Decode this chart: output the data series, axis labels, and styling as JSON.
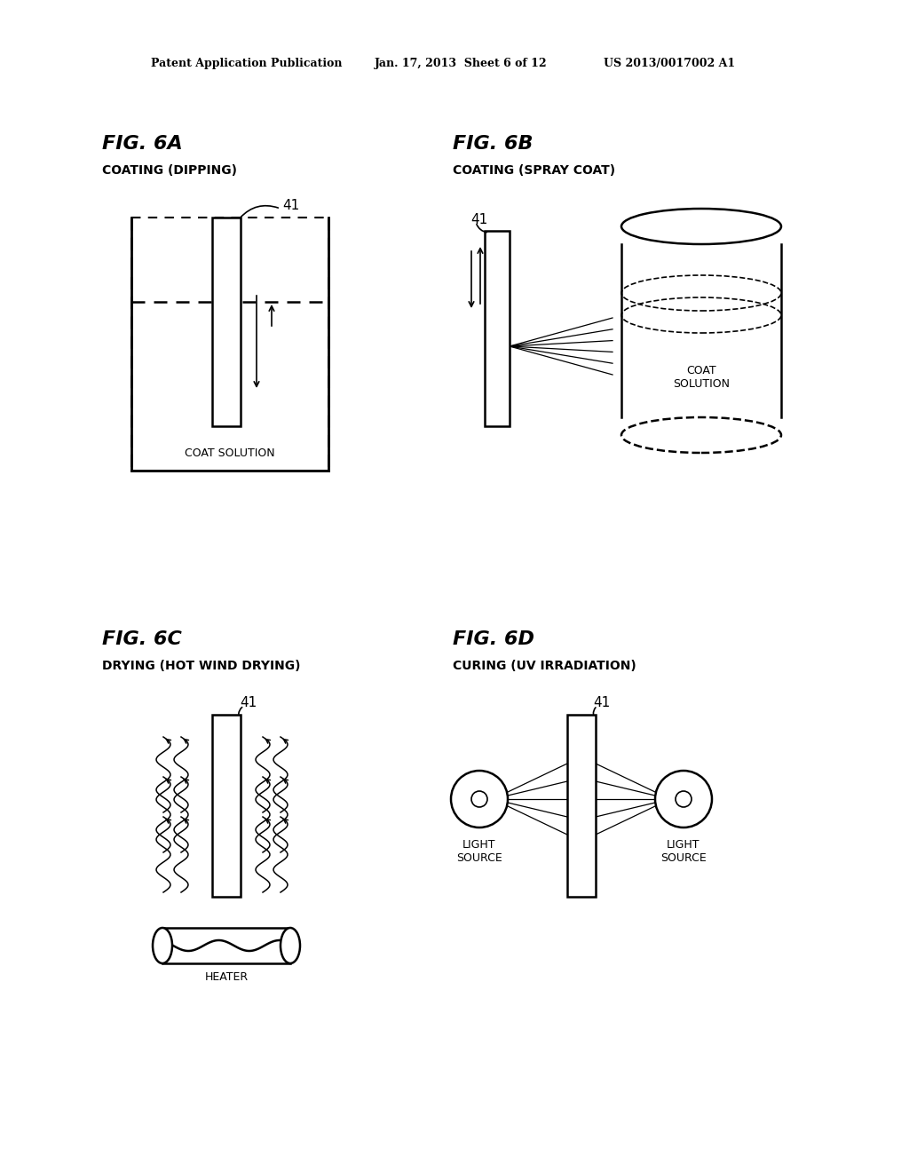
{
  "bg_color": "#ffffff",
  "header_line1": "Patent Application Publication",
  "header_line2": "Jan. 17, 2013  Sheet 6 of 12",
  "header_line3": "US 2013/0017002 A1",
  "fig6a_title": "FIG. 6A",
  "fig6a_sub": "COATING (DIPPING)",
  "fig6b_title": "FIG. 6B",
  "fig6b_sub": "COATING (SPRAY COAT)",
  "fig6c_title": "FIG. 6C",
  "fig6c_sub": "DRYING (HOT WIND DRYING)",
  "fig6d_title": "FIG. 6D",
  "fig6d_sub": "CURING (UV IRRADIATION)",
  "label_41": "41",
  "label_coat_solution": "COAT SOLUTION",
  "label_coat_solution2": "COAT\nSOLUTION",
  "label_heater": "HEATER",
  "label_light_source": "LIGHT\nSOURCE"
}
